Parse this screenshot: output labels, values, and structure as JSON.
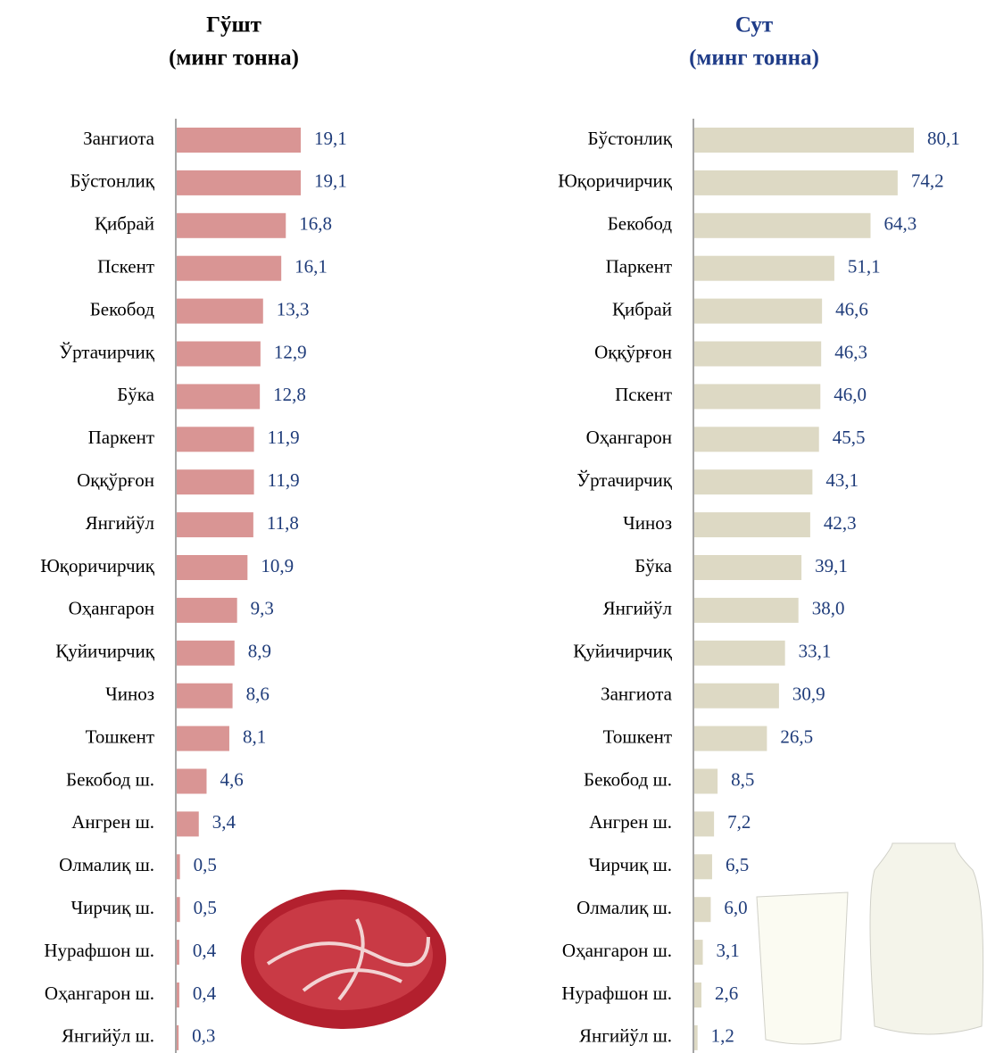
{
  "chart_data": [
    {
      "type": "bar",
      "orientation": "horizontal",
      "title": "Гўшт",
      "subtitle": "(минг тонна)",
      "color": "#d99594",
      "categories": [
        "Зангиота",
        "Бўстонлиқ",
        "Қибрай",
        "Пскент",
        "Бекобод",
        "Ўртачирчиқ",
        "Бўка",
        "Паркент",
        "Оққўрғон",
        "Янгийўл",
        "Юқоричирчиқ",
        "Оҳангарон",
        "Қуйичирчиқ",
        "Чиноз",
        "Тошкент",
        "Бекобод ш.",
        "Ангрен ш.",
        "Олмалиқ ш.",
        "Чирчиқ ш.",
        "Нурафшон ш.",
        "Оҳангарон ш.",
        "Янгийўл ш."
      ],
      "values": [
        19.1,
        19.1,
        16.8,
        16.1,
        13.3,
        12.9,
        12.8,
        11.9,
        11.9,
        11.8,
        10.9,
        9.3,
        8.9,
        8.6,
        8.1,
        4.6,
        3.4,
        0.5,
        0.5,
        0.4,
        0.4,
        0.3
      ],
      "value_labels": [
        "19,1",
        "19,1",
        "16,8",
        "16,1",
        "13,3",
        "12,9",
        "12,8",
        "11,9",
        "11,9",
        "11,8",
        "10,9",
        "9,3",
        "8,9",
        "8,6",
        "8,1",
        "4,6",
        "3,4",
        "0,5",
        "0,5",
        "0,4",
        "0,4",
        "0,3"
      ]
    },
    {
      "type": "bar",
      "orientation": "horizontal",
      "title": "Сут",
      "subtitle": "(минг тонна)",
      "color": "#ddd9c4",
      "categories": [
        "Бўстонлиқ",
        "Юқоричирчиқ",
        "Бекобод",
        "Паркент",
        "Қибрай",
        "Оққўрғон",
        "Пскент",
        "Оҳангарон",
        "Ўртачирчиқ",
        "Чиноз",
        "Бўка",
        "Янгийўл",
        "Қуйичирчиқ",
        "Зангиота",
        "Тошкент",
        "Бекобод ш.",
        "Ангрен ш.",
        "Чирчиқ ш.",
        "Олмалиқ ш.",
        "Оҳангарон ш.",
        "Нурафшон ш.",
        "Янгийўл ш."
      ],
      "values": [
        80.1,
        74.2,
        64.3,
        51.1,
        46.6,
        46.3,
        46.0,
        45.5,
        43.1,
        42.3,
        39.1,
        38.0,
        33.1,
        30.9,
        26.5,
        8.5,
        7.2,
        6.5,
        6.0,
        3.1,
        2.6,
        1.2
      ],
      "value_labels": [
        "80,1",
        "74,2",
        "64,3",
        "51,1",
        "46,6",
        "46,3",
        "46,0",
        "45,5",
        "43,1",
        "42,3",
        "39,1",
        "38,0",
        "33,1",
        "30,9",
        "26,5",
        "8,5",
        "7,2",
        "6,5",
        "6,0",
        "3,1",
        "2,6",
        "1,2"
      ]
    }
  ]
}
